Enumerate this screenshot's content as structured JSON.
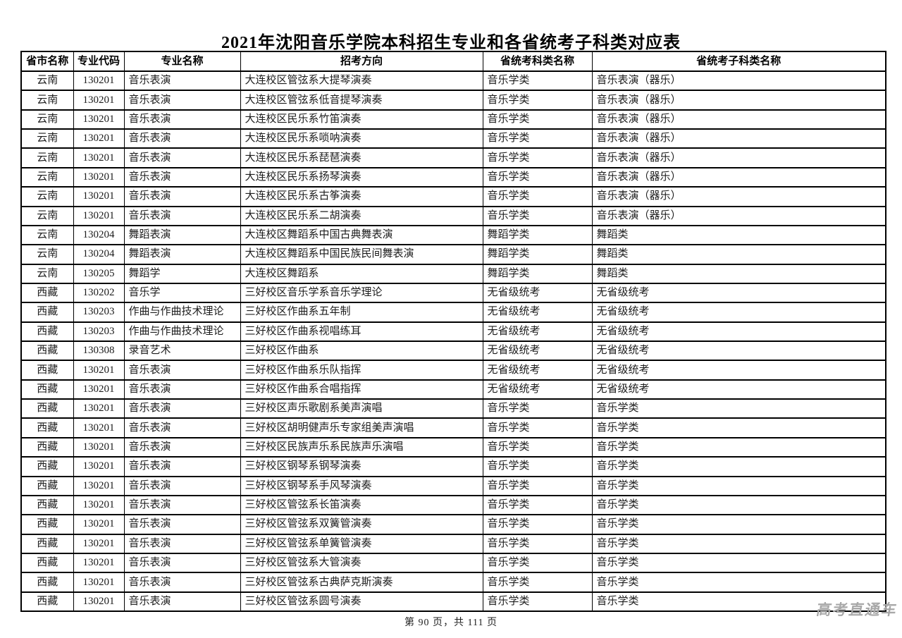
{
  "page": {
    "title": "2021年沈阳音乐学院本科招生专业和各省统考子科类对应表",
    "footer": "第 90 页，共 111 页",
    "watermark": "高考直通车"
  },
  "colors": {
    "border": "#000000",
    "text": "#1c1c1c",
    "watermark": "#a8a8a8",
    "background": "#ffffff"
  },
  "table": {
    "columns": [
      {
        "key": "province",
        "label": "省市名称"
      },
      {
        "key": "major-code",
        "label": "专业代码"
      },
      {
        "key": "major-name",
        "label": "专业名称"
      },
      {
        "key": "direction",
        "label": "招考方向"
      },
      {
        "key": "exam-category",
        "label": "省统考科类名称"
      },
      {
        "key": "exam-subcategory",
        "label": "省统考子科类名称"
      }
    ],
    "rows": [
      [
        "云南",
        "130201",
        "音乐表演",
        "大连校区管弦系大提琴演奏",
        "音乐学类",
        "音乐表演（器乐）"
      ],
      [
        "云南",
        "130201",
        "音乐表演",
        "大连校区管弦系低音提琴演奏",
        "音乐学类",
        "音乐表演（器乐）"
      ],
      [
        "云南",
        "130201",
        "音乐表演",
        "大连校区民乐系竹笛演奏",
        "音乐学类",
        "音乐表演（器乐）"
      ],
      [
        "云南",
        "130201",
        "音乐表演",
        "大连校区民乐系唢呐演奏",
        "音乐学类",
        "音乐表演（器乐）"
      ],
      [
        "云南",
        "130201",
        "音乐表演",
        "大连校区民乐系琵琶演奏",
        "音乐学类",
        "音乐表演（器乐）"
      ],
      [
        "云南",
        "130201",
        "音乐表演",
        "大连校区民乐系扬琴演奏",
        "音乐学类",
        "音乐表演（器乐）"
      ],
      [
        "云南",
        "130201",
        "音乐表演",
        "大连校区民乐系古筝演奏",
        "音乐学类",
        "音乐表演（器乐）"
      ],
      [
        "云南",
        "130201",
        "音乐表演",
        "大连校区民乐系二胡演奏",
        "音乐学类",
        "音乐表演（器乐）"
      ],
      [
        "云南",
        "130204",
        "舞蹈表演",
        "大连校区舞蹈系中国古典舞表演",
        "舞蹈学类",
        "舞蹈类"
      ],
      [
        "云南",
        "130204",
        "舞蹈表演",
        "大连校区舞蹈系中国民族民间舞表演",
        "舞蹈学类",
        "舞蹈类"
      ],
      [
        "云南",
        "130205",
        "舞蹈学",
        "大连校区舞蹈系",
        "舞蹈学类",
        "舞蹈类"
      ],
      [
        "西藏",
        "130202",
        "音乐学",
        "三好校区音乐学系音乐学理论",
        "无省级统考",
        "无省级统考"
      ],
      [
        "西藏",
        "130203",
        "作曲与作曲技术理论",
        "三好校区作曲系五年制",
        "无省级统考",
        "无省级统考"
      ],
      [
        "西藏",
        "130203",
        "作曲与作曲技术理论",
        "三好校区作曲系视唱练耳",
        "无省级统考",
        "无省级统考"
      ],
      [
        "西藏",
        "130308",
        "录音艺术",
        "三好校区作曲系",
        "无省级统考",
        "无省级统考"
      ],
      [
        "西藏",
        "130201",
        "音乐表演",
        "三好校区作曲系乐队指挥",
        "无省级统考",
        "无省级统考"
      ],
      [
        "西藏",
        "130201",
        "音乐表演",
        "三好校区作曲系合唱指挥",
        "无省级统考",
        "无省级统考"
      ],
      [
        "西藏",
        "130201",
        "音乐表演",
        "三好校区声乐歌剧系美声演唱",
        "音乐学类",
        "音乐学类"
      ],
      [
        "西藏",
        "130201",
        "音乐表演",
        "三好校区胡明健声乐专家组美声演唱",
        "音乐学类",
        "音乐学类"
      ],
      [
        "西藏",
        "130201",
        "音乐表演",
        "三好校区民族声乐系民族声乐演唱",
        "音乐学类",
        "音乐学类"
      ],
      [
        "西藏",
        "130201",
        "音乐表演",
        "三好校区钢琴系钢琴演奏",
        "音乐学类",
        "音乐学类"
      ],
      [
        "西藏",
        "130201",
        "音乐表演",
        "三好校区钢琴系手风琴演奏",
        "音乐学类",
        "音乐学类"
      ],
      [
        "西藏",
        "130201",
        "音乐表演",
        "三好校区管弦系长笛演奏",
        "音乐学类",
        "音乐学类"
      ],
      [
        "西藏",
        "130201",
        "音乐表演",
        "三好校区管弦系双簧管演奏",
        "音乐学类",
        "音乐学类"
      ],
      [
        "西藏",
        "130201",
        "音乐表演",
        "三好校区管弦系单簧管演奏",
        "音乐学类",
        "音乐学类"
      ],
      [
        "西藏",
        "130201",
        "音乐表演",
        "三好校区管弦系大管演奏",
        "音乐学类",
        "音乐学类"
      ],
      [
        "西藏",
        "130201",
        "音乐表演",
        "三好校区管弦系古典萨克斯演奏",
        "音乐学类",
        "音乐学类"
      ],
      [
        "西藏",
        "130201",
        "音乐表演",
        "三好校区管弦系圆号演奏",
        "音乐学类",
        "音乐学类"
      ]
    ]
  }
}
